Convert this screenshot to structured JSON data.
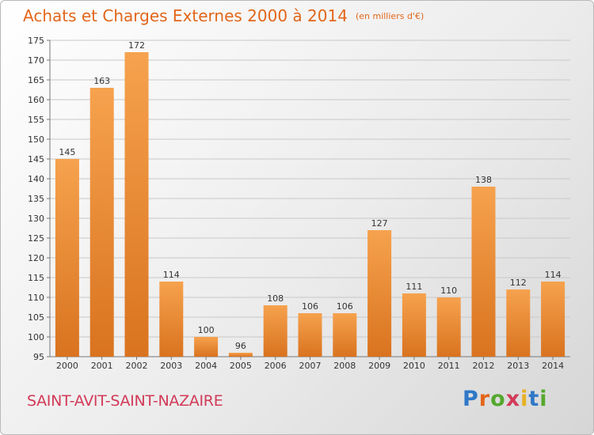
{
  "header": {
    "title": "Achats et Charges Externes 2000 à 2014",
    "unit": "(en milliers d'€)"
  },
  "commune": "SAINT-AVIT-SAINT-NAZAIRE",
  "logo": {
    "text": "Proxiti",
    "colors": [
      "#2f78c8",
      "#e2661a",
      "#55a82e",
      "#d23a58",
      "#e8b021",
      "#2f78c8",
      "#55a82e"
    ]
  },
  "colors": {
    "bar_light": "#f6a24e",
    "bar_dark": "#d9731f",
    "title": "#e2661a",
    "commune": "#d23a58"
  },
  "chart_data": {
    "type": "bar",
    "title": "Achats et Charges Externes 2000 à 2014",
    "xlabel": "",
    "ylabel": "",
    "categories": [
      "2000",
      "2001",
      "2002",
      "2003",
      "2004",
      "2005",
      "2006",
      "2007",
      "2008",
      "2009",
      "2010",
      "2011",
      "2012",
      "2013",
      "2014"
    ],
    "values": [
      145,
      163,
      172,
      114,
      100,
      96,
      108,
      106,
      106,
      127,
      111,
      110,
      138,
      112,
      114
    ],
    "ylim": [
      95,
      175
    ],
    "yticks": [
      95,
      100,
      105,
      110,
      115,
      120,
      125,
      130,
      135,
      140,
      145,
      150,
      155,
      160,
      165,
      170,
      175
    ],
    "grid": true,
    "legend": "none"
  }
}
